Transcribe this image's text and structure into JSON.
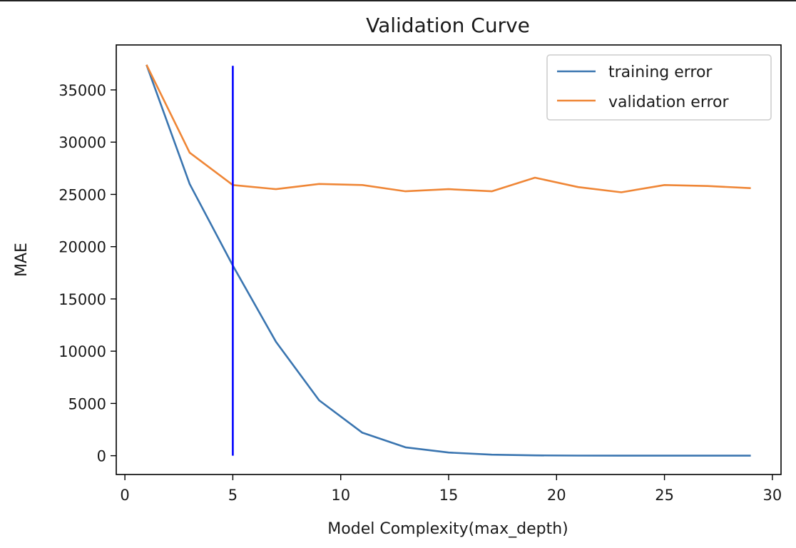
{
  "chart_data": {
    "type": "line",
    "title": "Validation Curve",
    "xlabel": "Model Complexity(max_depth)",
    "ylabel": "MAE",
    "xlim": [
      -0.4,
      30.4
    ],
    "ylim": [
      -1800,
      39300
    ],
    "x_ticks": [
      0,
      5,
      10,
      15,
      20,
      25,
      30
    ],
    "y_ticks": [
      0,
      5000,
      10000,
      15000,
      20000,
      25000,
      30000,
      35000
    ],
    "x_tick_labels": [
      "0",
      "5",
      "10",
      "15",
      "20",
      "25",
      "30"
    ],
    "y_tick_labels": [
      "0",
      "5000",
      "10000",
      "15000",
      "20000",
      "25000",
      "30000",
      "35000"
    ],
    "grid": false,
    "legend_position": "top-right",
    "x": [
      1,
      3,
      5,
      7,
      9,
      11,
      13,
      15,
      17,
      19,
      21,
      23,
      25,
      27,
      29
    ],
    "series": [
      {
        "name": "training error",
        "color": "#3a75b0",
        "values": [
          37400,
          26000,
          18200,
          10900,
          5300,
          2200,
          800,
          300,
          100,
          30,
          10,
          5,
          2,
          1,
          0
        ]
      },
      {
        "name": "validation error",
        "color": "#ef8636",
        "values": [
          37400,
          29000,
          25900,
          25500,
          26000,
          25900,
          25300,
          25500,
          25300,
          26600,
          25700,
          25200,
          25900,
          25800,
          25600
        ]
      }
    ],
    "vline": {
      "x": 5,
      "y_from": 0,
      "y_to": 37300,
      "color": "#0000ff"
    }
  }
}
